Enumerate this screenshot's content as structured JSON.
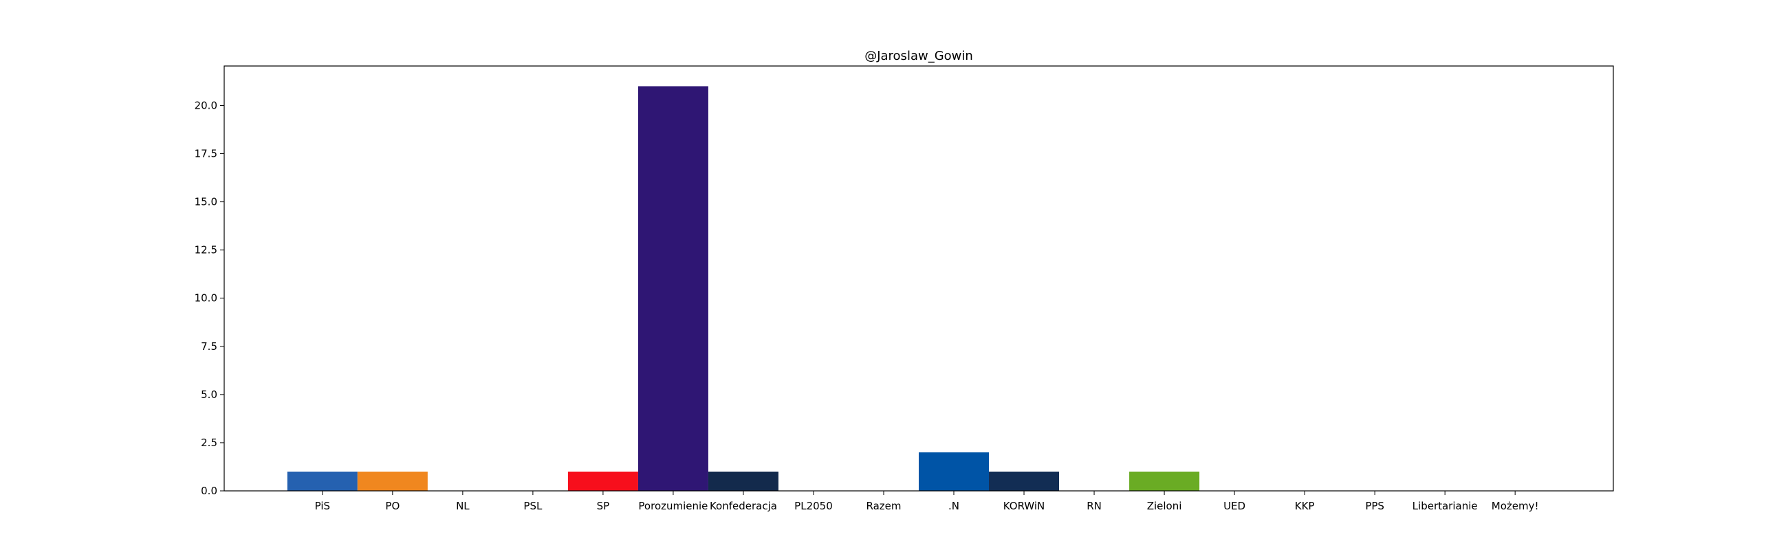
{
  "chart_data": {
    "type": "bar",
    "title": "@Jaroslaw_Gowin",
    "xlabel": "",
    "ylabel": "",
    "ylim": [
      0,
      22.05
    ],
    "yticks": [
      0.0,
      2.5,
      5.0,
      7.5,
      10.0,
      12.5,
      15.0,
      17.5,
      20.0
    ],
    "ytick_labels": [
      "0.0",
      "2.5",
      "5.0",
      "7.5",
      "10.0",
      "12.5",
      "15.0",
      "17.5",
      "20.0"
    ],
    "grid": false,
    "categories": [
      "PiS",
      "PO",
      "NL",
      "PSL",
      "SP",
      "Porozumienie",
      "Konfederacja",
      "PL2050",
      "Razem",
      ".N",
      "KORWiN",
      "RN",
      "Zieloni",
      "UED",
      "KKP",
      "PPS",
      "Libertarianie",
      "Możemy!"
    ],
    "values": [
      1,
      1,
      0,
      0,
      1,
      21,
      1,
      0,
      0,
      2,
      1,
      0,
      1,
      0,
      0,
      0,
      0,
      0
    ],
    "colors": [
      "#2561b0",
      "#f0871f",
      "#b0222b",
      "#3aa336",
      "#f70f1c",
      "#2f1674",
      "#132a4c",
      "#e0b400",
      "#8b1a6e",
      "#0054a6",
      "#122d54",
      "#1f3b7a",
      "#6aac24",
      "#1e6ab8",
      "#ff8c00",
      "#c8102e",
      "#e8c21a",
      "#1a1a1a"
    ]
  }
}
